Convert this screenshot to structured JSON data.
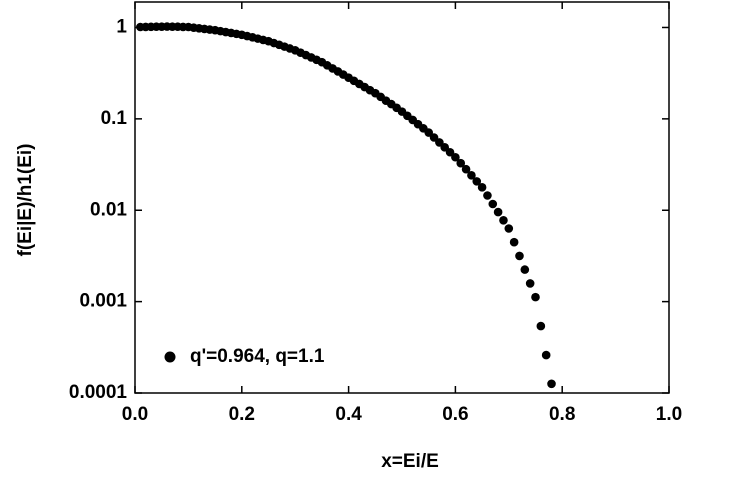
{
  "chart_data": {
    "type": "scatter",
    "x_label": "x=Ei/E",
    "y_label": "f(Ei|E)/h1(Ei)",
    "log_y": true,
    "xlim": [
      0,
      1.0
    ],
    "xticks": [
      {
        "value": 0,
        "label": "0.0"
      },
      0.2,
      0.4,
      0.6,
      0.8,
      {
        "value": 1.0,
        "label": "1.0"
      }
    ],
    "ylim": [
      0.0001,
      1.9
    ],
    "yticks": [
      1,
      0.1,
      0.01,
      0.001,
      0.0001
    ],
    "legend": "lower left",
    "series": [
      {
        "name": "q'=0.964, q=1.1",
        "color": "#000000",
        "x": [
          0.01,
          0.02,
          0.03,
          0.04,
          0.05,
          0.06,
          0.07,
          0.08,
          0.09,
          0.1,
          0.11,
          0.12,
          0.13,
          0.14,
          0.15,
          0.16,
          0.17,
          0.18,
          0.19,
          0.2,
          0.21,
          0.22,
          0.23,
          0.24,
          0.25,
          0.26,
          0.27,
          0.28,
          0.29,
          0.3,
          0.31,
          0.32,
          0.33,
          0.34,
          0.35,
          0.36,
          0.37,
          0.38,
          0.39,
          0.4,
          0.41,
          0.42,
          0.43,
          0.44,
          0.45,
          0.46,
          0.47,
          0.48,
          0.49,
          0.5,
          0.51,
          0.52,
          0.53,
          0.54,
          0.55,
          0.56,
          0.57,
          0.58,
          0.59,
          0.6,
          0.61,
          0.62,
          0.63,
          0.64,
          0.65,
          0.66,
          0.67,
          0.68,
          0.69,
          0.7,
          0.71,
          0.72,
          0.73,
          0.74,
          0.75,
          0.76,
          0.77,
          0.78
        ],
        "values": [
          1.012,
          1.014,
          1.016,
          1.019,
          1.021,
          1.023,
          1.021,
          1.019,
          1.014,
          1.012,
          0.995,
          0.979,
          0.964,
          0.948,
          0.933,
          0.912,
          0.891,
          0.871,
          0.851,
          0.832,
          0.805,
          0.78,
          0.755,
          0.731,
          0.708,
          0.676,
          0.646,
          0.617,
          0.589,
          0.562,
          0.53,
          0.499,
          0.47,
          0.443,
          0.417,
          0.385,
          0.356,
          0.33,
          0.305,
          0.282,
          0.261,
          0.241,
          0.223,
          0.206,
          0.191,
          0.174,
          0.158,
          0.145,
          0.132,
          0.12,
          0.108,
          0.0973,
          0.0875,
          0.0787,
          0.0708,
          0.0625,
          0.0552,
          0.0488,
          0.0431,
          0.038,
          0.0327,
          0.0281,
          0.0241,
          0.0207,
          0.0178,
          0.0145,
          0.0117,
          0.00955,
          0.00776,
          0.00631,
          0.00447,
          0.00316,
          0.00224,
          0.00158,
          0.00112,
          0.00054,
          0.00026,
          0.000126
        ]
      }
    ]
  }
}
